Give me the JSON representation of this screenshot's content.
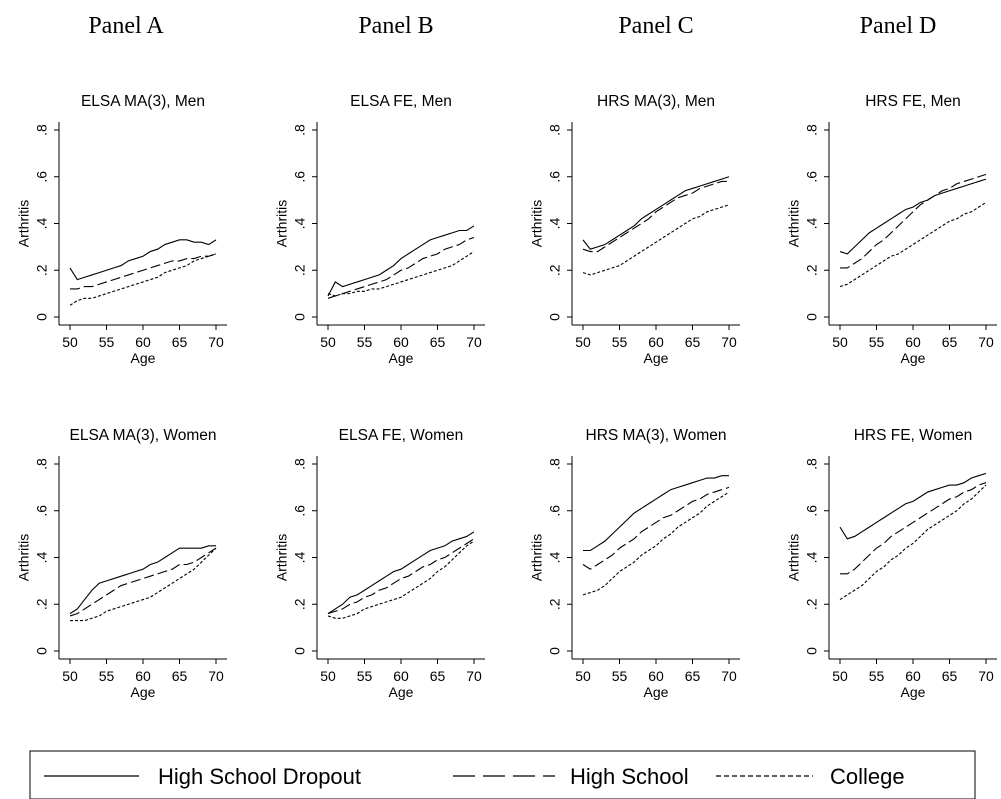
{
  "panel_headers": [
    "Panel A",
    "Panel B",
    "Panel C",
    "Panel D"
  ],
  "legend": {
    "items": [
      {
        "label": "High School Dropout",
        "style": "solid"
      },
      {
        "label": "High School",
        "style": "dashed"
      },
      {
        "label": "College",
        "style": "dotted"
      }
    ]
  },
  "chart_data": [
    {
      "type": "line",
      "title": "ELSA MA(3), Men",
      "xlabel": "Age",
      "ylabel": "Arthritis",
      "xlim": [
        50,
        70
      ],
      "ylim": [
        0,
        0.8
      ],
      "xticks": [
        "50",
        "55",
        "60",
        "65",
        "70"
      ],
      "yticks": [
        ".8",
        ".6",
        ".4",
        ".2",
        "0"
      ],
      "x": [
        50,
        51,
        52,
        53,
        54,
        55,
        56,
        57,
        58,
        59,
        60,
        61,
        62,
        63,
        64,
        65,
        66,
        67,
        68,
        69,
        70
      ],
      "series": [
        {
          "name": "High School Dropout",
          "style": "solid",
          "values": [
            0.21,
            0.16,
            0.17,
            0.18,
            0.19,
            0.2,
            0.21,
            0.22,
            0.24,
            0.25,
            0.26,
            0.28,
            0.29,
            0.31,
            0.32,
            0.33,
            0.33,
            0.32,
            0.32,
            0.31,
            0.33
          ]
        },
        {
          "name": "High School",
          "style": "dashed",
          "values": [
            0.12,
            0.12,
            0.13,
            0.13,
            0.14,
            0.15,
            0.16,
            0.17,
            0.18,
            0.19,
            0.2,
            0.21,
            0.22,
            0.23,
            0.24,
            0.24,
            0.25,
            0.25,
            0.26,
            0.26,
            0.27
          ]
        },
        {
          "name": "College",
          "style": "dotted",
          "values": [
            0.05,
            0.07,
            0.08,
            0.08,
            0.09,
            0.1,
            0.11,
            0.12,
            0.13,
            0.14,
            0.15,
            0.16,
            0.17,
            0.19,
            0.2,
            0.21,
            0.22,
            0.24,
            0.25,
            0.26,
            0.27
          ]
        }
      ]
    },
    {
      "type": "line",
      "title": "ELSA FE, Men",
      "xlabel": "Age",
      "ylabel": "Arthritis",
      "xlim": [
        50,
        70
      ],
      "ylim": [
        0,
        0.8
      ],
      "xticks": [
        "50",
        "55",
        "60",
        "65",
        "70"
      ],
      "yticks": [
        ".8",
        ".6",
        ".4",
        ".2",
        "0"
      ],
      "x": [
        50,
        51,
        52,
        53,
        54,
        55,
        56,
        57,
        58,
        59,
        60,
        61,
        62,
        63,
        64,
        65,
        66,
        67,
        68,
        69,
        70
      ],
      "series": [
        {
          "name": "High School Dropout",
          "style": "solid",
          "values": [
            0.09,
            0.15,
            0.13,
            0.14,
            0.15,
            0.16,
            0.17,
            0.18,
            0.2,
            0.22,
            0.25,
            0.27,
            0.29,
            0.31,
            0.33,
            0.34,
            0.35,
            0.36,
            0.37,
            0.37,
            0.39
          ]
        },
        {
          "name": "High School",
          "style": "dashed",
          "values": [
            0.08,
            0.09,
            0.1,
            0.11,
            0.12,
            0.13,
            0.14,
            0.15,
            0.16,
            0.18,
            0.2,
            0.21,
            0.23,
            0.25,
            0.26,
            0.27,
            0.29,
            0.3,
            0.31,
            0.33,
            0.34
          ]
        },
        {
          "name": "College",
          "style": "dotted",
          "values": [
            0.1,
            0.09,
            0.1,
            0.1,
            0.11,
            0.11,
            0.12,
            0.12,
            0.13,
            0.14,
            0.15,
            0.16,
            0.17,
            0.18,
            0.19,
            0.2,
            0.21,
            0.22,
            0.24,
            0.26,
            0.28
          ]
        }
      ]
    },
    {
      "type": "line",
      "title": "HRS MA(3), Men",
      "xlabel": "Age",
      "ylabel": "Arthritis",
      "xlim": [
        50,
        70
      ],
      "ylim": [
        0,
        0.8
      ],
      "xticks": [
        "50",
        "55",
        "60",
        "65",
        "70"
      ],
      "yticks": [
        ".8",
        ".6",
        ".4",
        ".2",
        "0"
      ],
      "x": [
        50,
        51,
        52,
        53,
        54,
        55,
        56,
        57,
        58,
        59,
        60,
        61,
        62,
        63,
        64,
        65,
        66,
        67,
        68,
        69,
        70
      ],
      "series": [
        {
          "name": "High School Dropout",
          "style": "solid",
          "values": [
            0.33,
            0.29,
            0.3,
            0.31,
            0.33,
            0.35,
            0.37,
            0.39,
            0.42,
            0.44,
            0.46,
            0.48,
            0.5,
            0.52,
            0.54,
            0.55,
            0.56,
            0.57,
            0.58,
            0.59,
            0.6
          ]
        },
        {
          "name": "High School",
          "style": "dashed",
          "values": [
            0.29,
            0.28,
            0.28,
            0.3,
            0.32,
            0.34,
            0.36,
            0.38,
            0.4,
            0.42,
            0.45,
            0.47,
            0.49,
            0.51,
            0.52,
            0.53,
            0.55,
            0.56,
            0.57,
            0.58,
            0.58
          ]
        },
        {
          "name": "College",
          "style": "dotted",
          "values": [
            0.19,
            0.18,
            0.19,
            0.2,
            0.21,
            0.22,
            0.24,
            0.26,
            0.28,
            0.3,
            0.32,
            0.34,
            0.36,
            0.38,
            0.4,
            0.42,
            0.43,
            0.45,
            0.46,
            0.47,
            0.48
          ]
        }
      ]
    },
    {
      "type": "line",
      "title": "HRS FE, Men",
      "xlabel": "Age",
      "ylabel": "Arthritis",
      "xlim": [
        50,
        70
      ],
      "ylim": [
        0,
        0.8
      ],
      "xticks": [
        "50",
        "55",
        "60",
        "65",
        "70"
      ],
      "yticks": [
        ".8",
        ".6",
        ".4",
        ".2",
        "0"
      ],
      "x": [
        50,
        51,
        52,
        53,
        54,
        55,
        56,
        57,
        58,
        59,
        60,
        61,
        62,
        63,
        64,
        65,
        66,
        67,
        68,
        69,
        70
      ],
      "series": [
        {
          "name": "High School Dropout",
          "style": "solid",
          "values": [
            0.28,
            0.27,
            0.3,
            0.33,
            0.36,
            0.38,
            0.4,
            0.42,
            0.44,
            0.46,
            0.47,
            0.49,
            0.5,
            0.52,
            0.53,
            0.54,
            0.55,
            0.56,
            0.57,
            0.58,
            0.59
          ]
        },
        {
          "name": "High School",
          "style": "dashed",
          "values": [
            0.21,
            0.21,
            0.23,
            0.25,
            0.28,
            0.31,
            0.33,
            0.36,
            0.39,
            0.42,
            0.45,
            0.48,
            0.5,
            0.52,
            0.54,
            0.55,
            0.57,
            0.58,
            0.59,
            0.6,
            0.61
          ]
        },
        {
          "name": "College",
          "style": "dotted",
          "values": [
            0.13,
            0.14,
            0.16,
            0.18,
            0.2,
            0.22,
            0.24,
            0.26,
            0.27,
            0.29,
            0.31,
            0.33,
            0.35,
            0.37,
            0.39,
            0.41,
            0.42,
            0.44,
            0.45,
            0.47,
            0.49
          ]
        }
      ]
    },
    {
      "type": "line",
      "title": "ELSA MA(3), Women",
      "xlabel": "Age",
      "ylabel": "Arthritis",
      "xlim": [
        50,
        70
      ],
      "ylim": [
        0,
        0.8
      ],
      "xticks": [
        "50",
        "55",
        "60",
        "65",
        "70"
      ],
      "yticks": [
        ".8",
        ".6",
        ".4",
        ".2",
        "0"
      ],
      "x": [
        50,
        51,
        52,
        53,
        54,
        55,
        56,
        57,
        58,
        59,
        60,
        61,
        62,
        63,
        64,
        65,
        66,
        67,
        68,
        69,
        70
      ],
      "series": [
        {
          "name": "High School Dropout",
          "style": "solid",
          "values": [
            0.16,
            0.18,
            0.22,
            0.26,
            0.29,
            0.3,
            0.31,
            0.32,
            0.33,
            0.34,
            0.35,
            0.37,
            0.38,
            0.4,
            0.42,
            0.44,
            0.44,
            0.44,
            0.44,
            0.45,
            0.45
          ]
        },
        {
          "name": "High School",
          "style": "dashed",
          "values": [
            0.15,
            0.16,
            0.18,
            0.2,
            0.22,
            0.24,
            0.26,
            0.28,
            0.29,
            0.3,
            0.31,
            0.32,
            0.33,
            0.34,
            0.35,
            0.37,
            0.37,
            0.38,
            0.4,
            0.42,
            0.44
          ]
        },
        {
          "name": "College",
          "style": "dotted",
          "values": [
            0.13,
            0.13,
            0.13,
            0.14,
            0.15,
            0.17,
            0.18,
            0.19,
            0.2,
            0.21,
            0.22,
            0.23,
            0.25,
            0.27,
            0.29,
            0.31,
            0.33,
            0.35,
            0.38,
            0.41,
            0.44
          ]
        }
      ]
    },
    {
      "type": "line",
      "title": "ELSA FE, Women",
      "xlabel": "Age",
      "ylabel": "Arthritis",
      "xlim": [
        50,
        70
      ],
      "ylim": [
        0,
        0.8
      ],
      "xticks": [
        "50",
        "55",
        "60",
        "65",
        "70"
      ],
      "yticks": [
        ".8",
        ".6",
        ".4",
        ".2",
        "0"
      ],
      "x": [
        50,
        51,
        52,
        53,
        54,
        55,
        56,
        57,
        58,
        59,
        60,
        61,
        62,
        63,
        64,
        65,
        66,
        67,
        68,
        69,
        70
      ],
      "series": [
        {
          "name": "High School Dropout",
          "style": "solid",
          "values": [
            0.16,
            0.18,
            0.2,
            0.23,
            0.24,
            0.26,
            0.28,
            0.3,
            0.32,
            0.34,
            0.35,
            0.37,
            0.39,
            0.41,
            0.43,
            0.44,
            0.45,
            0.47,
            0.48,
            0.49,
            0.51
          ]
        },
        {
          "name": "High School",
          "style": "dashed",
          "values": [
            0.16,
            0.17,
            0.18,
            0.2,
            0.21,
            0.23,
            0.24,
            0.26,
            0.27,
            0.29,
            0.31,
            0.32,
            0.34,
            0.36,
            0.37,
            0.39,
            0.4,
            0.42,
            0.44,
            0.46,
            0.48
          ]
        },
        {
          "name": "College",
          "style": "dotted",
          "values": [
            0.15,
            0.14,
            0.14,
            0.15,
            0.16,
            0.18,
            0.19,
            0.2,
            0.21,
            0.22,
            0.23,
            0.25,
            0.27,
            0.29,
            0.31,
            0.34,
            0.36,
            0.39,
            0.42,
            0.45,
            0.47
          ]
        }
      ]
    },
    {
      "type": "line",
      "title": "HRS MA(3), Women",
      "xlabel": "Age",
      "ylabel": "Arthritis",
      "xlim": [
        50,
        70
      ],
      "ylim": [
        0,
        0.8
      ],
      "xticks": [
        "50",
        "55",
        "60",
        "65",
        "70"
      ],
      "yticks": [
        ".8",
        ".6",
        ".4",
        ".2",
        "0"
      ],
      "x": [
        50,
        51,
        52,
        53,
        54,
        55,
        56,
        57,
        58,
        59,
        60,
        61,
        62,
        63,
        64,
        65,
        66,
        67,
        68,
        69,
        70
      ],
      "series": [
        {
          "name": "High School Dropout",
          "style": "solid",
          "values": [
            0.43,
            0.43,
            0.45,
            0.47,
            0.5,
            0.53,
            0.56,
            0.59,
            0.61,
            0.63,
            0.65,
            0.67,
            0.69,
            0.7,
            0.71,
            0.72,
            0.73,
            0.74,
            0.74,
            0.75,
            0.75
          ]
        },
        {
          "name": "High School",
          "style": "dashed",
          "values": [
            0.37,
            0.35,
            0.37,
            0.39,
            0.41,
            0.44,
            0.46,
            0.48,
            0.51,
            0.53,
            0.55,
            0.57,
            0.58,
            0.6,
            0.62,
            0.64,
            0.65,
            0.67,
            0.68,
            0.69,
            0.7
          ]
        },
        {
          "name": "College",
          "style": "dotted",
          "values": [
            0.24,
            0.25,
            0.26,
            0.28,
            0.31,
            0.34,
            0.36,
            0.38,
            0.41,
            0.43,
            0.45,
            0.48,
            0.5,
            0.53,
            0.55,
            0.57,
            0.59,
            0.62,
            0.64,
            0.66,
            0.68
          ]
        }
      ]
    },
    {
      "type": "line",
      "title": "HRS FE, Women",
      "xlabel": "Age",
      "ylabel": "Arthritis",
      "xlim": [
        50,
        70
      ],
      "ylim": [
        0,
        0.8
      ],
      "xticks": [
        "50",
        "55",
        "60",
        "65",
        "70"
      ],
      "yticks": [
        ".8",
        ".6",
        ".4",
        ".2",
        "0"
      ],
      "x": [
        50,
        51,
        52,
        53,
        54,
        55,
        56,
        57,
        58,
        59,
        60,
        61,
        62,
        63,
        64,
        65,
        66,
        67,
        68,
        69,
        70
      ],
      "series": [
        {
          "name": "High School Dropout",
          "style": "solid",
          "values": [
            0.53,
            0.48,
            0.49,
            0.51,
            0.53,
            0.55,
            0.57,
            0.59,
            0.61,
            0.63,
            0.64,
            0.66,
            0.68,
            0.69,
            0.7,
            0.71,
            0.71,
            0.72,
            0.74,
            0.75,
            0.76
          ]
        },
        {
          "name": "High School",
          "style": "dashed",
          "values": [
            0.33,
            0.33,
            0.35,
            0.38,
            0.41,
            0.44,
            0.46,
            0.49,
            0.51,
            0.53,
            0.55,
            0.57,
            0.59,
            0.61,
            0.63,
            0.65,
            0.66,
            0.68,
            0.69,
            0.71,
            0.72
          ]
        },
        {
          "name": "College",
          "style": "dotted",
          "values": [
            0.22,
            0.24,
            0.26,
            0.28,
            0.31,
            0.34,
            0.36,
            0.39,
            0.41,
            0.44,
            0.46,
            0.49,
            0.52,
            0.54,
            0.56,
            0.58,
            0.6,
            0.63,
            0.65,
            0.68,
            0.71
          ]
        }
      ]
    }
  ]
}
